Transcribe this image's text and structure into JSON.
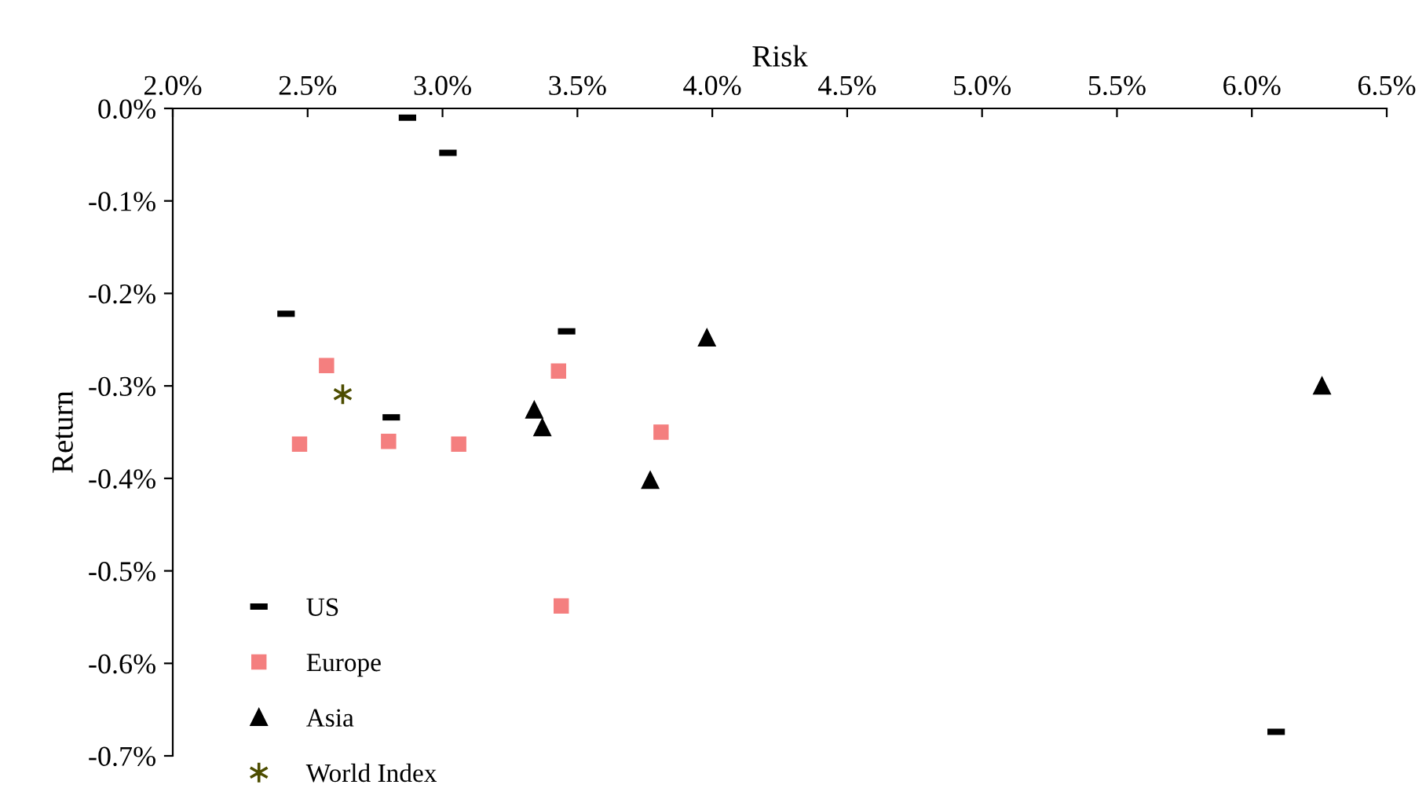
{
  "chart_data": {
    "type": "scatter",
    "xlabel": "Risk",
    "ylabel": "Return",
    "xlim": [
      2.0,
      6.5
    ],
    "ylim": [
      -0.7,
      0.0
    ],
    "xticks": [
      {
        "value": 2.0,
        "label": "2.0%"
      },
      {
        "value": 2.5,
        "label": "2.5%"
      },
      {
        "value": 3.0,
        "label": "3.0%"
      },
      {
        "value": 3.5,
        "label": "3.5%"
      },
      {
        "value": 4.0,
        "label": "4.0%"
      },
      {
        "value": 4.5,
        "label": "4.5%"
      },
      {
        "value": 5.0,
        "label": "5.0%"
      },
      {
        "value": 5.5,
        "label": "5.5%"
      },
      {
        "value": 6.0,
        "label": "6.0%"
      },
      {
        "value": 6.5,
        "label": "6.5%"
      }
    ],
    "yticks": [
      {
        "value": 0.0,
        "label": "0.0%"
      },
      {
        "value": -0.1,
        "label": "-0.1%"
      },
      {
        "value": -0.2,
        "label": "-0.2%"
      },
      {
        "value": -0.3,
        "label": "-0.3%"
      },
      {
        "value": -0.4,
        "label": "-0.4%"
      },
      {
        "value": -0.5,
        "label": "-0.5%"
      },
      {
        "value": -0.6,
        "label": "-0.6%"
      },
      {
        "value": -0.7,
        "label": "-0.7%"
      }
    ],
    "grid": false,
    "legend": "bottom left",
    "series": [
      {
        "name": "US",
        "color": "#000000",
        "x": [
          2.87,
          3.02,
          2.42,
          3.46,
          2.81,
          6.09
        ],
        "values": [
          -0.01,
          -0.048,
          -0.222,
          -0.241,
          -0.334,
          -0.674
        ]
      },
      {
        "name": "Europe",
        "color": "#f47f7f",
        "marker": "square",
        "x": [
          2.57,
          2.47,
          2.8,
          3.06,
          3.43,
          3.81,
          3.44
        ],
        "values": [
          -0.278,
          -0.363,
          -0.36,
          -0.363,
          -0.284,
          -0.35,
          -0.538
        ]
      },
      {
        "name": "Asia",
        "color": "#000000",
        "marker": "triangle",
        "x": [
          3.34,
          3.37,
          3.77,
          3.98,
          6.26
        ],
        "values": [
          -0.326,
          -0.345,
          -0.402,
          -0.248,
          -0.3
        ]
      },
      {
        "name": "World Index",
        "color": "#4d4d00",
        "marker": "cross",
        "x": [
          2.63
        ],
        "values": [
          -0.309
        ]
      }
    ]
  }
}
